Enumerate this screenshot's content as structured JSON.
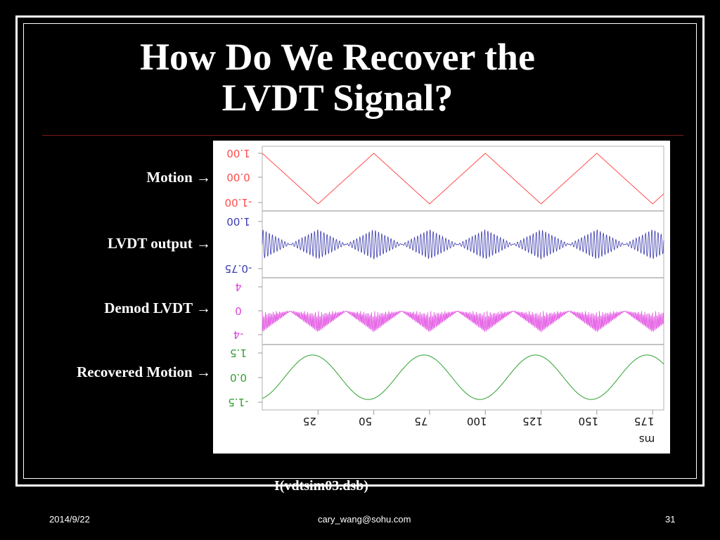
{
  "slide": {
    "title_line1": "How Do We Recover the",
    "title_line2": "LVDT Signal?",
    "caption": "I(vdtsim03.dsb)",
    "footer_date": "2014/9/22",
    "footer_email": "cary_wang@sohu.com",
    "footer_page": "31"
  },
  "row_labels": [
    "Motion →",
    "LVDT output →",
    "Demod LVDT →",
    "Recovered Motion →"
  ],
  "chart_data": {
    "type": "line",
    "x_ticks": [
      "25",
      "50",
      "75",
      "100",
      "125",
      "150",
      "175"
    ],
    "x_unit": "ms",
    "xlim": [
      0,
      180
    ],
    "panels": [
      {
        "name": "Motion",
        "color": "#ff4d4d",
        "yticks": [
          "1.00",
          "0.00",
          "-1.00"
        ],
        "ylim": [
          -1,
          1
        ]
      },
      {
        "name": "LVDT output",
        "color": "#3b3bb0",
        "yticks": [
          "1.00",
          "-0.75"
        ],
        "ylim": [
          -0.75,
          1
        ]
      },
      {
        "name": "Demod LVDT",
        "color": "#e040e0",
        "yticks": [
          "4",
          "0",
          "-4"
        ],
        "ylim": [
          -4,
          4
        ]
      },
      {
        "name": "Recovered Motion",
        "color": "#2ea02e",
        "yticks": [
          "1.5",
          "0.0",
          "-1.5"
        ],
        "ylim": [
          -1.5,
          1.5
        ]
      }
    ],
    "motion_period_ms": 50,
    "notes": "Tick labels appear mirrored (rotated 180°) in the original capture."
  }
}
